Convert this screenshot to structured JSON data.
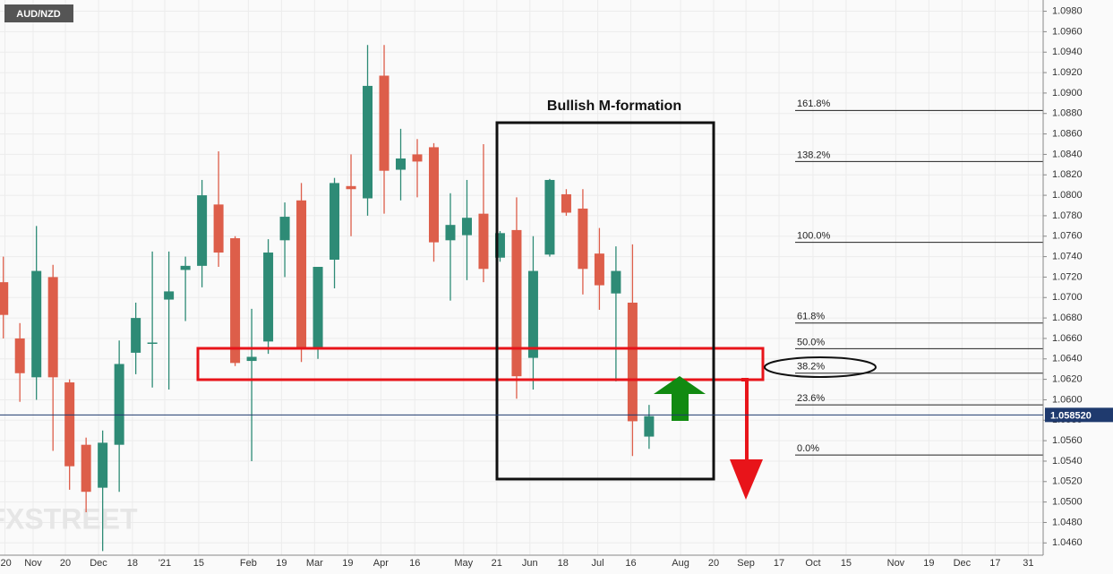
{
  "chart_data": {
    "type": "candlestick",
    "title": "AUD/NZD",
    "annotation": "Bullish M-formation",
    "watermark": "FXSTREET",
    "up_color": "#2e8b76",
    "down_color": "#dd5e4a",
    "x": [
      0,
      1,
      2,
      3,
      4,
      5,
      6,
      7,
      8,
      9,
      10,
      11,
      12,
      13,
      14,
      15,
      16,
      17,
      18,
      19,
      20,
      21,
      22,
      23,
      24,
      25,
      26,
      27,
      28,
      29,
      30,
      31,
      32,
      33,
      34,
      35,
      36,
      37,
      38,
      39
    ],
    "open": [
      1.0715,
      1.066,
      1.0622,
      1.072,
      1.0617,
      1.0556,
      1.0514,
      1.0556,
      1.0646,
      1.0655,
      1.0698,
      1.0727,
      1.0731,
      1.0791,
      1.0758,
      1.0638,
      1.0657,
      1.0756,
      1.0795,
      1.0651,
      1.0737,
      1.0809,
      1.0797,
      1.0917,
      1.0825,
      1.084,
      1.0847,
      1.0756,
      1.0761,
      1.0782,
      1.0739,
      1.0766,
      1.0641,
      1.0742,
      1.0801,
      1.0787,
      1.0743,
      1.0704,
      1.0695,
      1.0564
    ],
    "high": [
      1.074,
      1.0675,
      1.077,
      1.0732,
      1.062,
      1.0563,
      1.057,
      1.0658,
      1.0695,
      1.0745,
      1.0745,
      1.074,
      1.0815,
      1.0843,
      1.076,
      1.0689,
      1.0757,
      1.0793,
      1.0812,
      1.073,
      1.0817,
      1.084,
      1.0947,
      1.0947,
      1.0865,
      1.0855,
      1.0851,
      1.0802,
      1.0815,
      1.085,
      1.0765,
      1.0798,
      1.076,
      1.0816,
      1.0806,
      1.0806,
      1.0768,
      1.075,
      1.0752,
      1.0595
    ],
    "low": [
      1.066,
      1.0598,
      1.06,
      1.055,
      1.0512,
      1.049,
      1.0452,
      1.051,
      1.0625,
      1.0612,
      1.061,
      1.0677,
      1.071,
      1.073,
      1.0633,
      1.054,
      1.0645,
      1.072,
      1.0637,
      1.064,
      1.0709,
      1.076,
      1.078,
      1.0782,
      1.0795,
      1.0798,
      1.0735,
      1.0697,
      1.0717,
      1.0715,
      1.0735,
      1.0601,
      1.061,
      1.074,
      1.078,
      1.0703,
      1.0688,
      1.0618,
      1.0545,
      1.0552
    ],
    "close": [
      1.0683,
      1.0626,
      1.0726,
      1.0622,
      1.0535,
      1.051,
      1.0558,
      1.0635,
      1.068,
      1.0656,
      1.0706,
      1.0731,
      1.08,
      1.0744,
      1.0636,
      1.0642,
      1.0744,
      1.0779,
      1.0651,
      1.073,
      1.0812,
      1.0806,
      1.0907,
      1.0824,
      1.0836,
      1.0833,
      1.0754,
      1.0771,
      1.0778,
      1.0728,
      1.0763,
      1.0623,
      1.0726,
      1.0815,
      1.0783,
      1.0728,
      1.0712,
      1.0726,
      1.0579,
      1.0584
    ],
    "xlim": [
      -0.2,
      62.8
    ],
    "xticks": [
      {
        "value": 0.1,
        "label": "'20"
      },
      {
        "value": 1.8,
        "label": "Nov"
      },
      {
        "value": 3.75,
        "label": "20"
      },
      {
        "value": 5.75,
        "label": "Dec"
      },
      {
        "value": 7.8,
        "label": "18"
      },
      {
        "value": 9.75,
        "label": "'21"
      },
      {
        "value": 11.8,
        "label": "15"
      },
      {
        "value": 14.8,
        "label": "Feb"
      },
      {
        "value": 16.8,
        "label": "19"
      },
      {
        "value": 18.8,
        "label": "Mar"
      },
      {
        "value": 20.8,
        "label": "19"
      },
      {
        "value": 22.8,
        "label": "Apr"
      },
      {
        "value": 24.85,
        "label": "16"
      },
      {
        "value": 27.8,
        "label": "May"
      },
      {
        "value": 29.8,
        "label": "21"
      },
      {
        "value": 31.8,
        "label": "Jun"
      },
      {
        "value": 33.8,
        "label": "18"
      },
      {
        "value": 35.9,
        "label": "Jul"
      },
      {
        "value": 37.9,
        "label": "16"
      },
      {
        "value": 40.9,
        "label": "Aug"
      },
      {
        "value": 42.9,
        "label": "20"
      },
      {
        "value": 44.85,
        "label": "Sep"
      },
      {
        "value": 46.85,
        "label": "17"
      },
      {
        "value": 48.9,
        "label": "Oct"
      },
      {
        "value": 50.9,
        "label": "15"
      },
      {
        "value": 53.9,
        "label": "Nov"
      },
      {
        "value": 55.9,
        "label": "19"
      },
      {
        "value": 57.9,
        "label": "Dec"
      },
      {
        "value": 59.9,
        "label": "17"
      },
      {
        "value": 61.9,
        "label": "31"
      }
    ],
    "ylim": [
      1.0448,
      1.0991
    ],
    "yticks": [
      {
        "value": 1.046,
        "label": "1.0460"
      },
      {
        "value": 1.048,
        "label": "1.0480"
      },
      {
        "value": 1.05,
        "label": "1.0500"
      },
      {
        "value": 1.052,
        "label": "1.0520"
      },
      {
        "value": 1.054,
        "label": "1.0540"
      },
      {
        "value": 1.056,
        "label": "1.0560"
      },
      {
        "value": 1.058,
        "label": "1.0580"
      },
      {
        "value": 1.06,
        "label": "1.0600"
      },
      {
        "value": 1.062,
        "label": "1.0620"
      },
      {
        "value": 1.064,
        "label": "1.0640"
      },
      {
        "value": 1.066,
        "label": "1.0660"
      },
      {
        "value": 1.068,
        "label": "1.0680"
      },
      {
        "value": 1.07,
        "label": "1.0700"
      },
      {
        "value": 1.072,
        "label": "1.0720"
      },
      {
        "value": 1.074,
        "label": "1.0740"
      },
      {
        "value": 1.076,
        "label": "1.0760"
      },
      {
        "value": 1.078,
        "label": "1.0780"
      },
      {
        "value": 1.08,
        "label": "1.0800"
      },
      {
        "value": 1.082,
        "label": "1.0820"
      },
      {
        "value": 1.084,
        "label": "1.0840"
      },
      {
        "value": 1.086,
        "label": "1.0860"
      },
      {
        "value": 1.088,
        "label": "1.0880"
      },
      {
        "value": 1.09,
        "label": "1.0900"
      },
      {
        "value": 1.092,
        "label": "1.0920"
      },
      {
        "value": 1.094,
        "label": "1.0940"
      },
      {
        "value": 1.096,
        "label": "1.0960"
      },
      {
        "value": 1.098,
        "label": "1.0980"
      }
    ],
    "grid": true,
    "last_price": {
      "value": 1.05852,
      "label": "1.058520"
    },
    "fib_levels": [
      {
        "label": "161.8%",
        "value": 1.0883
      },
      {
        "label": "138.2%",
        "value": 1.0833
      },
      {
        "label": "100.0%",
        "value": 1.0754
      },
      {
        "label": "61.8%",
        "value": 1.0675
      },
      {
        "label": "50.0%",
        "value": 1.065
      },
      {
        "label": "38.2%",
        "value": 1.0626
      },
      {
        "label": "23.6%",
        "value": 1.0595
      },
      {
        "label": "0.0%",
        "value": 1.0546
      }
    ]
  }
}
